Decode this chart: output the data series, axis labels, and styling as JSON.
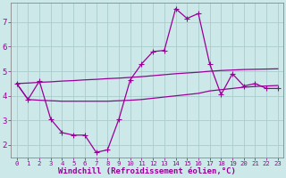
{
  "background_color": "#cce8e8",
  "grid_color": "#aacccc",
  "line_color": "#990099",
  "xlabel": "Windchill (Refroidissement éolien,°C)",
  "xlim": [
    -0.5,
    23.5
  ],
  "ylim": [
    1.5,
    7.8
  ],
  "yticks": [
    2,
    3,
    4,
    5,
    6,
    7
  ],
  "xticks": [
    0,
    1,
    2,
    3,
    4,
    5,
    6,
    7,
    8,
    9,
    10,
    11,
    12,
    13,
    14,
    15,
    16,
    17,
    18,
    19,
    20,
    21,
    22,
    23
  ],
  "line1_x": [
    0,
    1,
    2,
    3,
    4,
    5,
    6,
    7,
    8,
    9,
    10,
    11,
    12,
    13,
    14,
    15,
    16,
    17,
    18,
    19,
    20,
    21,
    22,
    23
  ],
  "line1_y": [
    4.5,
    3.85,
    4.6,
    3.05,
    2.5,
    2.4,
    2.4,
    1.7,
    1.8,
    3.05,
    4.65,
    5.3,
    5.8,
    5.85,
    7.55,
    7.15,
    7.35,
    5.3,
    4.05,
    4.9,
    4.4,
    4.5,
    4.3,
    4.3
  ],
  "line2_x": [
    0,
    1,
    2,
    3,
    4,
    5,
    6,
    7,
    8,
    9,
    10,
    11,
    12,
    13,
    14,
    15,
    16,
    17,
    18,
    19,
    20,
    21,
    22,
    23
  ],
  "line2_y": [
    4.5,
    4.52,
    4.55,
    4.57,
    4.6,
    4.62,
    4.65,
    4.67,
    4.7,
    4.72,
    4.75,
    4.78,
    4.82,
    4.86,
    4.9,
    4.93,
    4.96,
    5.0,
    5.03,
    5.05,
    5.07,
    5.08,
    5.09,
    5.1
  ],
  "line3_x": [
    0,
    1,
    2,
    3,
    4,
    5,
    6,
    7,
    8,
    9,
    10,
    11,
    12,
    13,
    14,
    15,
    16,
    17,
    18,
    19,
    20,
    21,
    22,
    23
  ],
  "line3_y": [
    4.5,
    3.85,
    3.82,
    3.8,
    3.78,
    3.78,
    3.78,
    3.78,
    3.78,
    3.8,
    3.82,
    3.85,
    3.9,
    3.95,
    4.0,
    4.05,
    4.1,
    4.2,
    4.25,
    4.3,
    4.35,
    4.38,
    4.4,
    4.42
  ],
  "marker": "+",
  "markersize": 4,
  "linewidth": 0.9,
  "xlabel_fontsize": 6.5,
  "tick_fontsize": 6,
  "spine_color": "#888888"
}
